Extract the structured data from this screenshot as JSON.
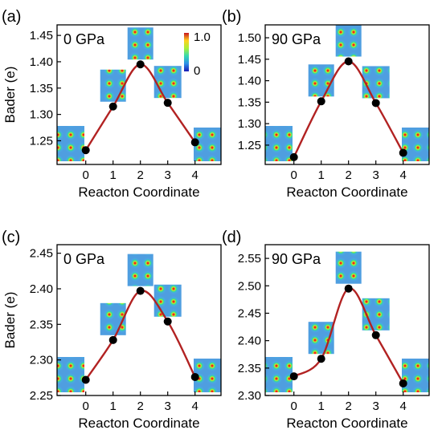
{
  "colorbar": {
    "max_label": "1.0",
    "min_label": "0"
  },
  "colors": {
    "curve": "#b22222",
    "point": "#000000",
    "frame": "#000000"
  },
  "chart_data": [
    {
      "panel_label": "(a)",
      "type": "line",
      "pressure_label": "0 GPa",
      "xlabel": "Reacton Coordinate",
      "ylabel": "Bader (e)",
      "x": [
        0,
        1,
        2,
        3,
        4
      ],
      "values": [
        1.232,
        1.315,
        1.395,
        1.322,
        1.247
      ],
      "xticks": [
        "0",
        "1",
        "2",
        "3",
        "4"
      ],
      "yticks": [
        "1.25",
        "1.30",
        "1.35",
        "1.40",
        "1.45"
      ],
      "ylim": [
        1.205,
        1.47
      ],
      "xlim": [
        -1.05,
        4.95
      ],
      "show_colorbar": true
    },
    {
      "panel_label": "(b)",
      "type": "line",
      "pressure_label": "90 GPa",
      "xlabel": "Reacton Coordinate",
      "ylabel": "",
      "x": [
        0,
        1,
        2,
        3,
        4
      ],
      "values": [
        1.222,
        1.352,
        1.445,
        1.348,
        1.232
      ],
      "xticks": [
        "0",
        "1",
        "2",
        "3",
        "4"
      ],
      "yticks": [
        "1.25",
        "1.30",
        "1.35",
        "1.40",
        "1.45",
        "1.50"
      ],
      "ylim": [
        1.205,
        1.53
      ],
      "xlim": [
        -1.05,
        4.95
      ],
      "show_colorbar": false
    },
    {
      "panel_label": "(c)",
      "type": "line",
      "pressure_label": "0 GPa",
      "xlabel": "Reacton Coordinate",
      "ylabel": "Bader (e)",
      "x": [
        0,
        1,
        2,
        3,
        4
      ],
      "values": [
        2.272,
        2.328,
        2.397,
        2.354,
        2.276
      ],
      "xticks": [
        "0",
        "1",
        "2",
        "3",
        "4"
      ],
      "yticks": [
        "2.25",
        "2.30",
        "2.35",
        "2.40",
        "2.45"
      ],
      "ylim": [
        2.25,
        2.462
      ],
      "xlim": [
        -1.05,
        4.95
      ],
      "show_colorbar": false
    },
    {
      "panel_label": "(d)",
      "type": "line",
      "pressure_label": "90 GPa",
      "xlabel": "Reacton Coordinate",
      "ylabel": "",
      "x": [
        0,
        1,
        2,
        3,
        4
      ],
      "values": [
        2.335,
        2.367,
        2.495,
        2.41,
        2.322
      ],
      "xticks": [
        "0",
        "1",
        "2",
        "3",
        "4"
      ],
      "yticks": [
        "2.30",
        "2.35",
        "2.40",
        "2.45",
        "2.50",
        "2.55"
      ],
      "ylim": [
        2.3,
        2.575
      ],
      "xlim": [
        -1.05,
        4.95
      ],
      "show_colorbar": false
    }
  ]
}
